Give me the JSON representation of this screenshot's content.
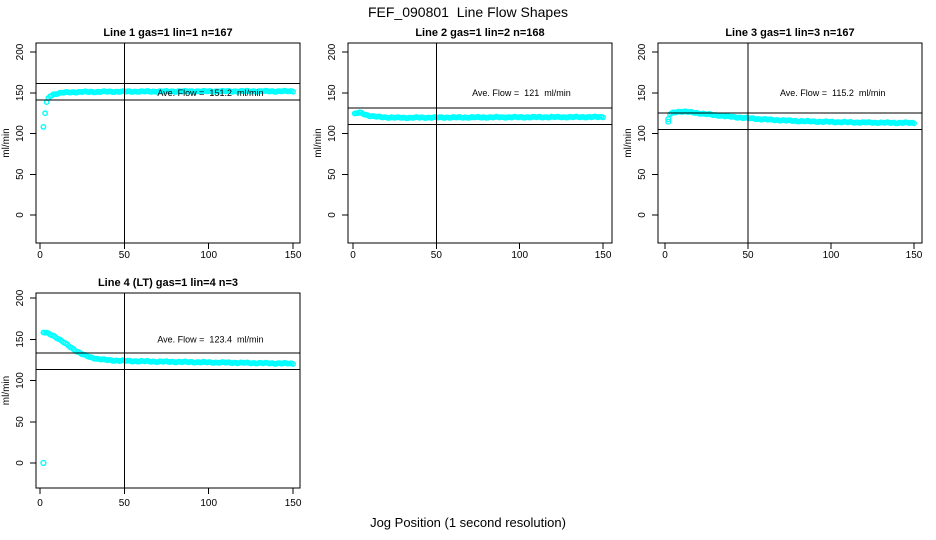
{
  "figure": {
    "title": "FEF_090801  Line Flow Shapes",
    "xlabel": "Jog Position (1 second resolution)",
    "background": "#ffffff",
    "marker_color": "#00ffff",
    "line_color": "#000000"
  },
  "chart_data": [
    {
      "type": "scatter",
      "title": "Line 1 gas=1 lin=1 n=167",
      "ylabel": "ml/min",
      "ave_flow": 151.2,
      "ave_flow_label": "Ave. Flow =  151.2  ml/min",
      "ref_lines": [
        161.2,
        141.2
      ],
      "vline_x": 50,
      "xlim": [
        0,
        150
      ],
      "ylim": [
        0,
        200
      ],
      "xticks": [
        0,
        50,
        100,
        150
      ],
      "yticks": [
        0,
        50,
        100,
        150,
        200
      ],
      "grid": false,
      "legend": null,
      "marker": "open-circle",
      "marker_color": "#00ffff",
      "curve_points": [
        [
          2,
          108
        ],
        [
          3,
          125
        ],
        [
          4,
          138
        ],
        [
          5,
          143
        ],
        [
          6,
          146
        ],
        [
          8,
          148
        ],
        [
          10,
          149
        ],
        [
          13,
          150
        ],
        [
          17,
          150.5
        ],
        [
          25,
          151
        ],
        [
          40,
          151.3
        ],
        [
          60,
          151.5
        ],
        [
          90,
          151.7
        ],
        [
          120,
          151.8
        ],
        [
          150,
          151.8
        ]
      ],
      "extra_points": []
    },
    {
      "type": "scatter",
      "title": "Line 2 gas=1 lin=2 n=168",
      "ylabel": "ml/min",
      "ave_flow": 121,
      "ave_flow_label": "Ave. Flow =  121  ml/min",
      "ref_lines": [
        131,
        111
      ],
      "vline_x": 50,
      "xlim": [
        0,
        150
      ],
      "ylim": [
        0,
        200
      ],
      "xticks": [
        0,
        50,
        100,
        150
      ],
      "yticks": [
        0,
        50,
        100,
        150,
        200
      ],
      "grid": false,
      "legend": null,
      "marker": "open-circle",
      "marker_color": "#00ffff",
      "curve_points": [
        [
          1,
          124
        ],
        [
          2,
          124.8
        ],
        [
          3,
          125.3
        ],
        [
          4,
          125.5
        ],
        [
          5,
          125
        ],
        [
          6,
          124.3
        ],
        [
          8,
          122.8
        ],
        [
          10,
          121.8
        ],
        [
          13,
          120.8
        ],
        [
          16,
          120.2
        ],
        [
          20,
          119.8
        ],
        [
          25,
          119.5
        ],
        [
          30,
          119.4
        ],
        [
          40,
          119.5
        ],
        [
          60,
          119.7
        ],
        [
          90,
          119.9
        ],
        [
          120,
          120.1
        ],
        [
          150,
          120.2
        ]
      ],
      "extra_points": []
    },
    {
      "type": "scatter",
      "title": "Line 3 gas=1 lin=3 n=167",
      "ylabel": "ml/min",
      "ave_flow": 115.2,
      "ave_flow_label": "Ave. Flow =  115.2  ml/min",
      "ref_lines": [
        125.2,
        105.2
      ],
      "vline_x": 50,
      "xlim": [
        0,
        150
      ],
      "ylim": [
        0,
        200
      ],
      "xticks": [
        0,
        50,
        100,
        150
      ],
      "yticks": [
        0,
        50,
        100,
        150,
        200
      ],
      "grid": false,
      "legend": null,
      "marker": "open-circle",
      "marker_color": "#00ffff",
      "curve_points": [
        [
          3,
          123.5
        ],
        [
          5,
          125.5
        ],
        [
          7,
          126.5
        ],
        [
          9,
          127
        ],
        [
          12,
          126.8
        ],
        [
          15,
          126.2
        ],
        [
          20,
          125
        ],
        [
          25,
          123.8
        ],
        [
          30,
          122.5
        ],
        [
          40,
          120.5
        ],
        [
          50,
          118.8
        ],
        [
          60,
          117.3
        ],
        [
          70,
          116.2
        ],
        [
          80,
          115.3
        ],
        [
          90,
          114.7
        ],
        [
          100,
          114.2
        ],
        [
          110,
          113.8
        ],
        [
          120,
          113.5
        ],
        [
          135,
          113.2
        ],
        [
          150,
          113
        ]
      ],
      "extra_points": [
        [
          2,
          117.5
        ],
        [
          2,
          114.5
        ]
      ]
    },
    {
      "type": "scatter",
      "title": "Line 4 (LT) gas=1 lin=4 n=3",
      "ylabel": "ml/min",
      "ave_flow": 123.4,
      "ave_flow_label": "Ave. Flow =  123.4  ml/min",
      "ref_lines": [
        133.4,
        113.4
      ],
      "vline_x": 50,
      "xlim": [
        0,
        150
      ],
      "ylim": [
        0,
        200
      ],
      "xticks": [
        0,
        50,
        100,
        150
      ],
      "yticks": [
        0,
        50,
        100,
        150,
        200
      ],
      "grid": false,
      "legend": null,
      "marker": "open-circle",
      "marker_color": "#00ffff",
      "curve_points": [
        [
          2,
          158
        ],
        [
          3,
          158
        ],
        [
          4,
          157.5
        ],
        [
          5,
          157
        ],
        [
          6,
          156.2
        ],
        [
          7,
          155.2
        ],
        [
          8,
          154.2
        ],
        [
          9,
          153
        ],
        [
          10,
          151.8
        ],
        [
          11,
          150.4
        ],
        [
          12,
          149
        ],
        [
          13,
          147.6
        ],
        [
          14,
          146.2
        ],
        [
          15,
          144.8
        ],
        [
          16,
          143.4
        ],
        [
          17,
          142
        ],
        [
          18,
          140.6
        ],
        [
          19,
          139.2
        ],
        [
          20,
          137.8
        ],
        [
          21,
          136.5
        ],
        [
          22,
          135.2
        ],
        [
          23,
          134
        ],
        [
          24,
          132.9
        ],
        [
          25,
          131.9
        ],
        [
          26,
          131
        ],
        [
          27,
          130.2
        ],
        [
          28,
          129.4
        ],
        [
          29,
          128.7
        ],
        [
          30,
          128.1
        ],
        [
          32,
          127.1
        ],
        [
          34,
          126.3
        ],
        [
          36,
          125.7
        ],
        [
          38,
          125.2
        ],
        [
          40,
          124.8
        ],
        [
          45,
          124.2
        ],
        [
          50,
          123.8
        ],
        [
          55,
          123.5
        ],
        [
          60,
          123.3
        ],
        [
          70,
          122.9
        ],
        [
          80,
          122.6
        ],
        [
          90,
          122.3
        ],
        [
          100,
          122
        ],
        [
          110,
          121.7
        ],
        [
          120,
          121.4
        ],
        [
          130,
          121.1
        ],
        [
          140,
          120.8
        ],
        [
          150,
          120.5
        ]
      ],
      "extra_points": [
        [
          2,
          0
        ]
      ]
    }
  ]
}
